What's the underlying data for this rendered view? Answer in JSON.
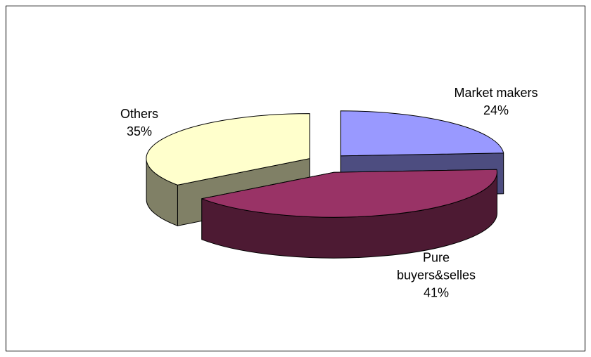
{
  "chart_data": {
    "type": "pie3d",
    "categories": [
      "Market makers",
      "Pure buyers&selles",
      "Others"
    ],
    "values": [
      24,
      41,
      35
    ],
    "value_labels": [
      "24%",
      "41%",
      "35%"
    ],
    "colors": [
      "#9999ff",
      "#993366",
      "#ffffcc"
    ]
  }
}
